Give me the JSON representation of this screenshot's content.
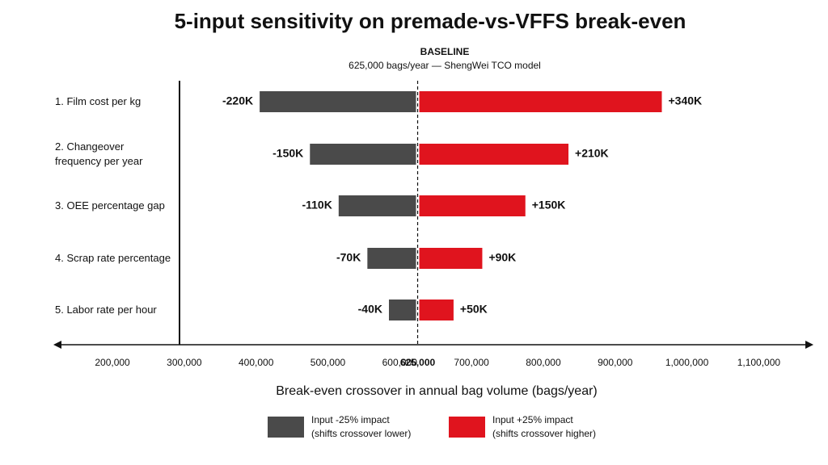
{
  "chart_data": {
    "type": "tornado",
    "title": "5-input sensitivity on premade-vs-VFFS break-even",
    "baseline_label": "BASELINE",
    "subtitle": "625,000 bags/year — ShengWei TCO model",
    "baseline": 625000,
    "categories": [
      "1. Film cost per kg",
      "2. Changeover\nfrequency per year",
      "3. OEE percentage gap",
      "4. Scrap rate percentage",
      "5. Labor rate per hour"
    ],
    "series": [
      {
        "name": "Input -25% impact\n(shifts crossover lower)",
        "color": "#4a4a4a",
        "values": [
          -220000,
          -150000,
          -110000,
          -70000,
          -40000
        ],
        "value_labels": [
          "-220K",
          "-150K",
          "-110K",
          "-70K",
          "-40K"
        ]
      },
      {
        "name": "Input +25% impact\n(shifts crossover higher)",
        "color": "#e0141e",
        "values": [
          340000,
          210000,
          150000,
          90000,
          50000
        ],
        "value_labels": [
          "+340K",
          "+210K",
          "+150K",
          "+90K",
          "+50K"
        ]
      }
    ],
    "xlabel": "Break-even crossover in annual bag volume (bags/year)",
    "xlim": [
      120000,
      1175000
    ],
    "xticks": [
      {
        "value": 200000,
        "label": "200,000"
      },
      {
        "value": 300000,
        "label": "300,000"
      },
      {
        "value": 400000,
        "label": "400,000"
      },
      {
        "value": 500000,
        "label": "500,000"
      },
      {
        "value": 600000,
        "label": "600,000"
      },
      {
        "value": 625000,
        "label": "625,000"
      },
      {
        "value": 700000,
        "label": "700,000"
      },
      {
        "value": 800000,
        "label": "800,000"
      },
      {
        "value": 900000,
        "label": "900,000"
      },
      {
        "value": 1000000,
        "label": "1,000,000"
      },
      {
        "value": 1100000,
        "label": "1,100,000"
      }
    ]
  }
}
